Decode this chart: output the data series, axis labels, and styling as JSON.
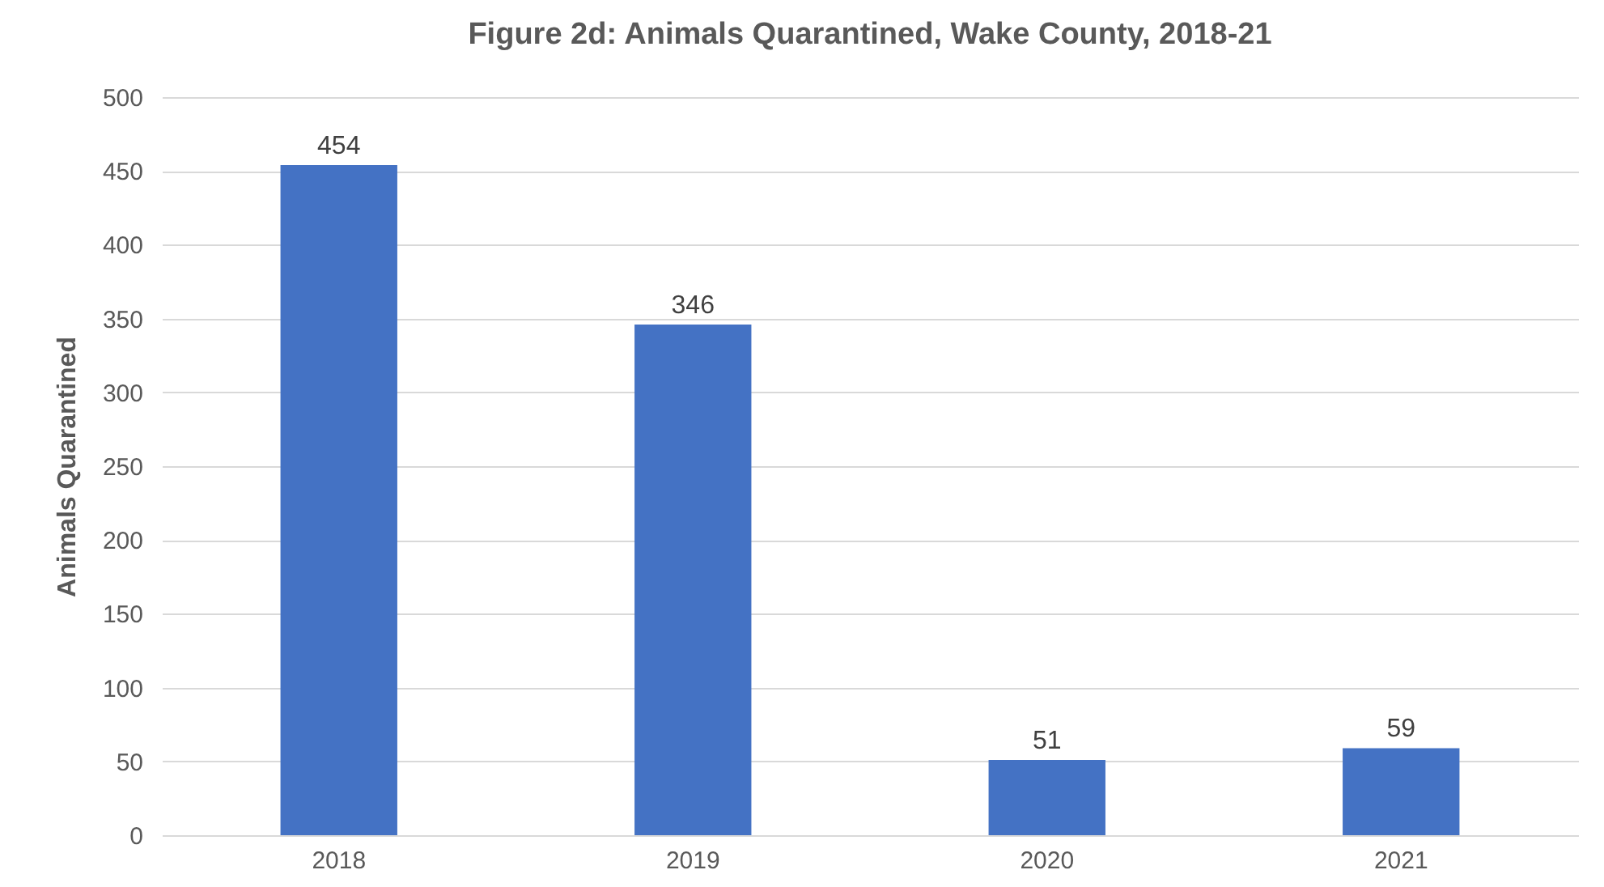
{
  "chart_data": {
    "type": "bar",
    "title": "Figure 2d: Animals Quarantined, Wake County, 2018-21",
    "ylabel": "Animals Quarantined",
    "categories": [
      "2018",
      "2019",
      "2020",
      "2021"
    ],
    "values": [
      454,
      346,
      51,
      59
    ],
    "color": "#4472c4",
    "ylim": [
      0,
      500
    ],
    "yticks": [
      0,
      50,
      100,
      150,
      200,
      250,
      300,
      350,
      400,
      450,
      500
    ],
    "grid": true,
    "data_labels": true
  }
}
